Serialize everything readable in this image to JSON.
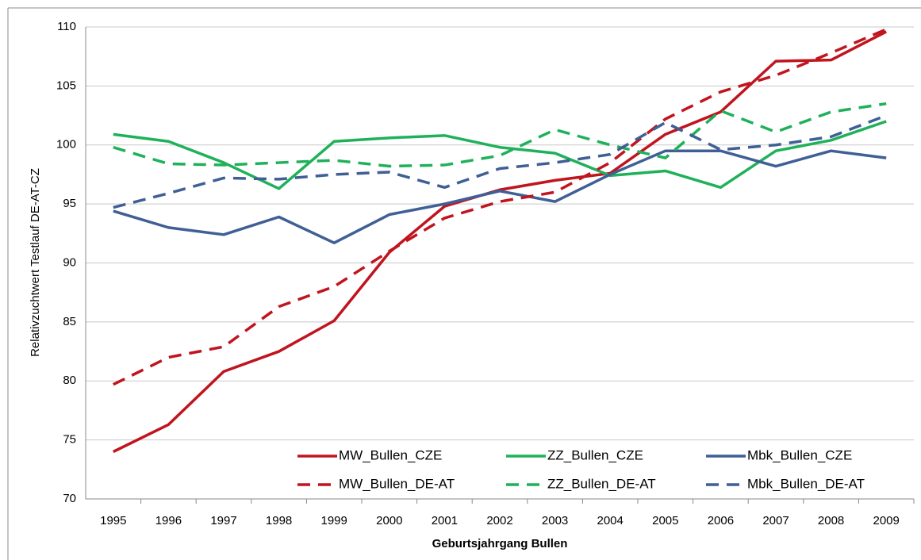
{
  "chart_data": {
    "type": "line",
    "x_label": "Geburtsjahrgang Bullen",
    "y_label": "Relativzuchtwert Testlauf DE-AT-CZ",
    "categories": [
      "1995",
      "1996",
      "1997",
      "1998",
      "1999",
      "2000",
      "2001",
      "2002",
      "2003",
      "2004",
      "2005",
      "2006",
      "2007",
      "2008",
      "2009"
    ],
    "series": [
      {
        "name": "MW_Bullen_CZE",
        "color": "#c0141e",
        "style": "solid",
        "values": [
          74.0,
          76.3,
          80.8,
          82.5,
          85.1,
          90.9,
          94.8,
          96.2,
          97.0,
          97.6,
          100.9,
          102.8,
          107.1,
          107.2,
          109.6
        ]
      },
      {
        "name": "ZZ_Bullen_CZE",
        "color": "#1fb15a",
        "style": "solid",
        "values": [
          100.9,
          100.3,
          98.5,
          96.3,
          100.3,
          100.6,
          100.8,
          99.8,
          99.3,
          97.4,
          97.8,
          96.4,
          99.5,
          100.4,
          102.0
        ]
      },
      {
        "name": "Mbk_Bullen_CZE",
        "color": "#3f5f95",
        "style": "solid",
        "values": [
          94.4,
          93.0,
          92.4,
          93.9,
          91.7,
          94.1,
          95.0,
          96.1,
          95.2,
          97.5,
          99.5,
          99.5,
          98.2,
          99.5,
          98.9
        ]
      },
      {
        "name": "MW_Bullen_DE-AT",
        "color": "#c0141e",
        "style": "dashed",
        "values": [
          79.7,
          82.0,
          82.9,
          86.3,
          88.0,
          91.0,
          93.8,
          95.2,
          96.0,
          98.5,
          102.2,
          104.5,
          105.9,
          107.8,
          109.8
        ]
      },
      {
        "name": "ZZ_Bullen_DE-AT",
        "color": "#1fb15a",
        "style": "dashed",
        "values": [
          99.8,
          98.4,
          98.3,
          98.5,
          98.7,
          98.2,
          98.3,
          99.1,
          101.3,
          100.0,
          98.9,
          102.9,
          101.1,
          102.8,
          103.5
        ]
      },
      {
        "name": "Mbk_Bullen_DE-AT",
        "color": "#3f5f95",
        "style": "dashed",
        "values": [
          94.7,
          95.9,
          97.2,
          97.1,
          97.5,
          97.7,
          96.4,
          98.0,
          98.5,
          99.2,
          101.9,
          99.6,
          100.0,
          100.7,
          102.5
        ]
      }
    ],
    "ylim": [
      70,
      110
    ],
    "yticks": [
      70,
      75,
      80,
      85,
      90,
      95,
      100,
      105,
      110
    ],
    "grid": true,
    "legend": "bottom"
  }
}
